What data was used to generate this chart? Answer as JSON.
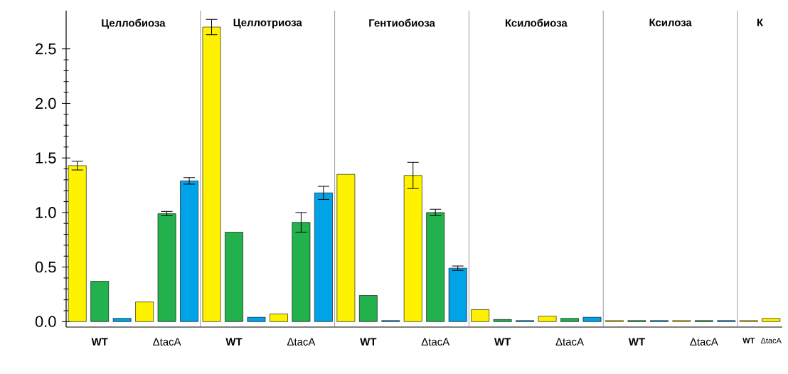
{
  "chart_data": {
    "type": "bar",
    "categories": [
      "WT",
      "ΔtacA",
      "WT",
      "ΔtacA",
      "WT",
      "ΔtacA",
      "WT",
      "ΔtacA",
      "WT",
      "ΔtacA",
      "WT",
      "ΔtacA"
    ],
    "series": [
      {
        "color": "#fff200",
        "values": [
          1.43,
          0.18,
          2.7,
          0.07,
          1.35,
          1.34,
          0.11,
          0.05,
          0.01,
          0.01,
          0.01,
          0.03
        ],
        "errors": [
          0.04,
          null,
          0.07,
          null,
          null,
          0.12,
          null,
          null,
          null,
          null,
          null,
          null
        ]
      },
      {
        "color": "#22b14c",
        "values": [
          0.37,
          0.99,
          0.82,
          0.91,
          0.24,
          1.0,
          0.02,
          0.03,
          0.01,
          0.01,
          null,
          null
        ],
        "errors": [
          null,
          0.02,
          null,
          0.09,
          null,
          0.03,
          null,
          null,
          null,
          null,
          null,
          null
        ]
      },
      {
        "color": "#00a2e8",
        "values": [
          0.03,
          1.29,
          0.04,
          1.18,
          0.01,
          0.49,
          0.01,
          0.04,
          0.01,
          0.01,
          null,
          null
        ],
        "errors": [
          null,
          0.03,
          null,
          0.06,
          null,
          0.02,
          null,
          null,
          null,
          null,
          null,
          null
        ]
      }
    ],
    "annotations": [
      "Целлобиоза",
      "Целлотриоза",
      "Гентиобиоза",
      "Ксилобиоза",
      "Ксилоза",
      "К"
    ],
    "ylim": [
      -0.05,
      2.85
    ],
    "yticks": [
      {
        "value": 0,
        "label": "0.0"
      },
      0.5,
      {
        "value": 1,
        "label": "1.0"
      },
      1.5,
      {
        "value": 2,
        "label": "2.0"
      },
      2.5
    ],
    "grid": false
  }
}
